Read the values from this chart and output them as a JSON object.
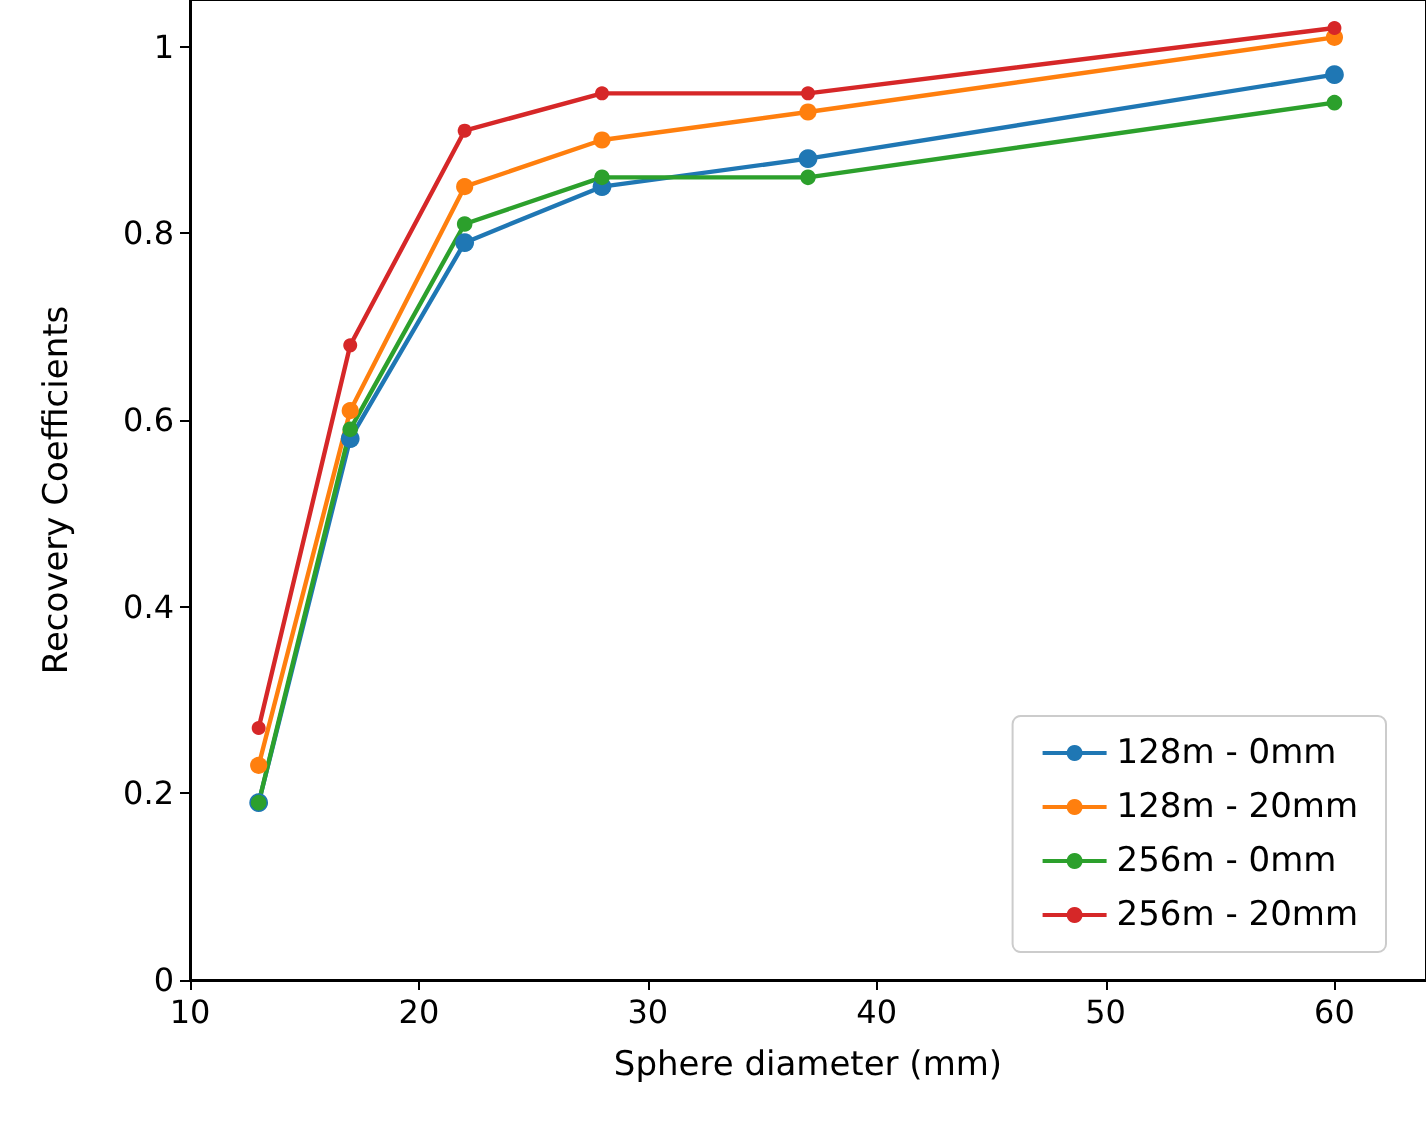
{
  "chart_data": {
    "type": "line",
    "xlabel": "Sphere diameter (mm)",
    "ylabel": "Recovery Coefficients",
    "x": [
      13,
      17,
      22,
      28,
      37,
      60
    ],
    "series": [
      {
        "name": "128m - 0mm",
        "color": "#1f77b4",
        "values": [
          0.19,
          0.58,
          0.79,
          0.85,
          0.88,
          0.97
        ]
      },
      {
        "name": "128m - 20mm",
        "color": "#ff7f0e",
        "values": [
          0.23,
          0.61,
          0.85,
          0.9,
          0.93,
          1.01
        ]
      },
      {
        "name": "256m - 0mm",
        "color": "#2ca02c",
        "values": [
          0.19,
          0.59,
          0.81,
          0.86,
          0.86,
          0.94
        ]
      },
      {
        "name": "256m - 20mm",
        "color": "#d62728",
        "values": [
          0.27,
          0.68,
          0.91,
          0.95,
          0.95,
          1.02
        ]
      }
    ],
    "xlim": [
      10,
      64
    ],
    "xticks": [
      10,
      20,
      30,
      40,
      50,
      60
    ],
    "ylim": [
      0,
      1.05
    ],
    "yticks": [
      0,
      0.2,
      0.4,
      0.6,
      0.8,
      1.0
    ],
    "grid": false,
    "legend": "bottom right",
    "marker": "circle",
    "line_style": "solid"
  }
}
